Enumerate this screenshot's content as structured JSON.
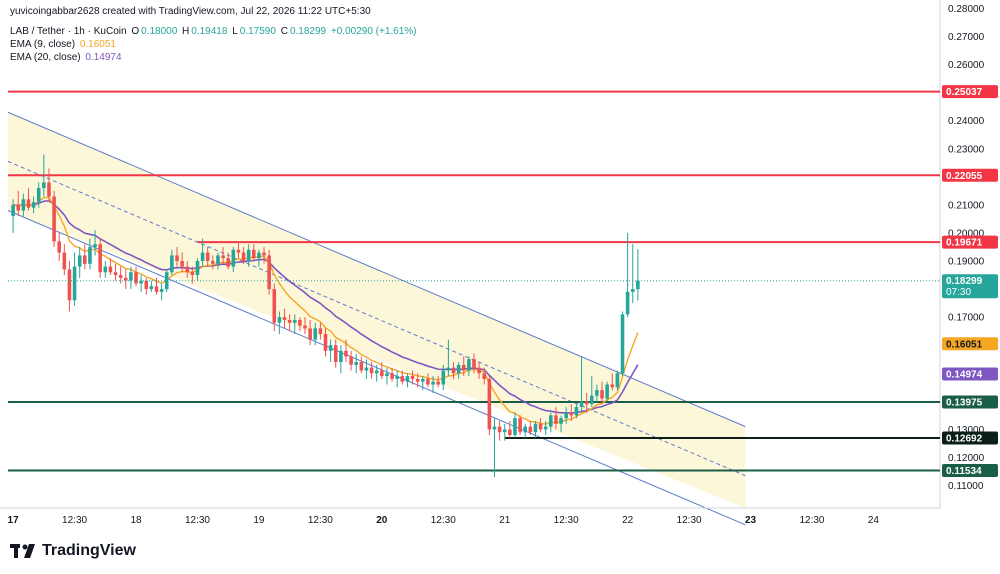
{
  "header": {
    "credit": "yuvicoingabbar2628 created with TradingView.com, Jul 22, 2026 11:22 UTC+5:30",
    "symbol": "LAB / Tether · 1h · KuCoin",
    "o_label": "O",
    "o_value": "0.18000",
    "h_label": "H",
    "h_value": "0.19418",
    "l_label": "L",
    "l_value": "0.17590",
    "c_label": "C",
    "c_value": "0.18299",
    "change": "+0.00290 (+1.61%)",
    "ema9_label": "EMA (9, close)",
    "ema9_value": "0.16051",
    "ema20_label": "EMA (20, close)",
    "ema20_value": "0.14974"
  },
  "colors": {
    "up": "#26a69a",
    "down": "#ef5350",
    "ema9": "#f5a623",
    "ema20": "#7e57c2",
    "resistance": "#f23645",
    "support": "#1b5e46",
    "channel": "#5b7dc8",
    "channel_fill": "#fdf7d9"
  },
  "branding": {
    "name": "TradingView",
    "icon": "tradingview-logo-icon"
  },
  "chart_data": {
    "type": "candlestick",
    "x_tick_labels": [
      "17",
      "12:30",
      "18",
      "12:30",
      "19",
      "12:30",
      "20",
      "12:30",
      "21",
      "12:30",
      "22",
      "12:30",
      "23",
      "12:30",
      "24"
    ],
    "y_tick_labels": [
      "0.28000",
      "0.27000",
      "0.26000",
      "0.25000",
      "0.24000",
      "0.23000",
      "0.22000",
      "0.21000",
      "0.20000",
      "0.19000",
      "0.18000",
      "0.17000",
      "0.16000",
      "0.15000",
      "0.14000",
      "0.13000",
      "0.12000",
      "0.11000"
    ],
    "ylim": [
      0.102,
      0.283
    ],
    "x_range_hours": [
      -1,
      181
    ],
    "horizontal_levels": [
      {
        "value": 0.25037,
        "label": "0.25037",
        "kind": "resistance",
        "x_start_hour": -1
      },
      {
        "value": 0.22055,
        "label": "0.22055",
        "kind": "resistance",
        "x_start_hour": -1
      },
      {
        "value": 0.19671,
        "label": "0.19671",
        "kind": "resistance",
        "x_start_hour": 36
      },
      {
        "value": 0.13975,
        "label": "0.13975",
        "kind": "support",
        "x_start_hour": -1
      },
      {
        "value": 0.12692,
        "label": "0.12692",
        "kind": "support_dark",
        "x_start_hour": 96
      },
      {
        "value": 0.11534,
        "label": "0.11534",
        "kind": "support",
        "x_start_hour": -1
      }
    ],
    "price_label": {
      "value": 0.18299,
      "label": "0.18299",
      "countdown": "07:30"
    },
    "ema9_label": {
      "value": 0.16051,
      "label": "0.16051"
    },
    "ema20_label": {
      "value": 0.14974,
      "label": "0.14974"
    },
    "channel": {
      "upper": [
        [
          -1,
          0.243
        ],
        [
          143,
          0.131
        ]
      ],
      "middle": [
        [
          -1,
          0.2255
        ],
        [
          143,
          0.1135
        ]
      ],
      "lower": [
        [
          -1,
          0.208
        ],
        [
          143,
          0.096
        ]
      ],
      "fill_end_hour": 143
    },
    "candles_ohlc_hourly": [
      [
        0.206,
        0.212,
        0.2,
        0.21
      ],
      [
        0.21,
        0.215,
        0.206,
        0.208
      ],
      [
        0.208,
        0.214,
        0.206,
        0.212
      ],
      [
        0.212,
        0.216,
        0.208,
        0.209
      ],
      [
        0.209,
        0.213,
        0.207,
        0.211
      ],
      [
        0.211,
        0.218,
        0.209,
        0.216
      ],
      [
        0.216,
        0.228,
        0.213,
        0.218
      ],
      [
        0.218,
        0.223,
        0.211,
        0.213
      ],
      [
        0.213,
        0.215,
        0.195,
        0.197
      ],
      [
        0.197,
        0.2,
        0.19,
        0.193
      ],
      [
        0.193,
        0.196,
        0.185,
        0.187
      ],
      [
        0.187,
        0.19,
        0.172,
        0.176
      ],
      [
        0.176,
        0.193,
        0.174,
        0.188
      ],
      [
        0.188,
        0.195,
        0.184,
        0.192
      ],
      [
        0.192,
        0.196,
        0.187,
        0.189
      ],
      [
        0.189,
        0.198,
        0.187,
        0.195
      ],
      [
        0.195,
        0.201,
        0.192,
        0.196
      ],
      [
        0.196,
        0.198,
        0.184,
        0.186
      ],
      [
        0.186,
        0.19,
        0.184,
        0.188
      ],
      [
        0.188,
        0.191,
        0.185,
        0.186
      ],
      [
        0.186,
        0.189,
        0.183,
        0.185
      ],
      [
        0.185,
        0.188,
        0.182,
        0.184
      ],
      [
        0.184,
        0.187,
        0.18,
        0.183
      ],
      [
        0.183,
        0.188,
        0.18,
        0.186
      ],
      [
        0.186,
        0.188,
        0.181,
        0.182
      ],
      [
        0.182,
        0.185,
        0.179,
        0.183
      ],
      [
        0.183,
        0.184,
        0.178,
        0.18
      ],
      [
        0.18,
        0.183,
        0.179,
        0.181
      ],
      [
        0.181,
        0.184,
        0.178,
        0.179
      ],
      [
        0.179,
        0.182,
        0.176,
        0.18
      ],
      [
        0.18,
        0.187,
        0.179,
        0.186
      ],
      [
        0.186,
        0.194,
        0.185,
        0.192
      ],
      [
        0.192,
        0.195,
        0.188,
        0.19
      ],
      [
        0.19,
        0.193,
        0.186,
        0.188
      ],
      [
        0.188,
        0.19,
        0.184,
        0.186
      ],
      [
        0.186,
        0.188,
        0.182,
        0.185
      ],
      [
        0.185,
        0.191,
        0.183,
        0.19
      ],
      [
        0.19,
        0.198,
        0.188,
        0.193
      ],
      [
        0.193,
        0.195,
        0.188,
        0.19
      ],
      [
        0.19,
        0.192,
        0.187,
        0.189
      ],
      [
        0.189,
        0.193,
        0.187,
        0.192
      ],
      [
        0.192,
        0.195,
        0.189,
        0.191
      ],
      [
        0.191,
        0.193,
        0.187,
        0.188
      ],
      [
        0.188,
        0.195,
        0.186,
        0.194
      ],
      [
        0.194,
        0.197,
        0.191,
        0.193
      ],
      [
        0.193,
        0.195,
        0.189,
        0.19
      ],
      [
        0.19,
        0.196,
        0.188,
        0.194
      ],
      [
        0.194,
        0.196,
        0.19,
        0.191
      ],
      [
        0.191,
        0.194,
        0.188,
        0.193
      ],
      [
        0.193,
        0.195,
        0.189,
        0.192
      ],
      [
        0.192,
        0.194,
        0.178,
        0.18
      ],
      [
        0.18,
        0.182,
        0.165,
        0.168
      ],
      [
        0.168,
        0.172,
        0.164,
        0.17
      ],
      [
        0.17,
        0.173,
        0.166,
        0.169
      ],
      [
        0.169,
        0.171,
        0.165,
        0.168
      ],
      [
        0.168,
        0.171,
        0.164,
        0.169
      ],
      [
        0.169,
        0.17,
        0.165,
        0.167
      ],
      [
        0.167,
        0.17,
        0.164,
        0.166
      ],
      [
        0.166,
        0.169,
        0.16,
        0.162
      ],
      [
        0.162,
        0.168,
        0.16,
        0.166
      ],
      [
        0.166,
        0.168,
        0.162,
        0.164
      ],
      [
        0.164,
        0.166,
        0.156,
        0.158
      ],
      [
        0.158,
        0.162,
        0.154,
        0.16
      ],
      [
        0.16,
        0.162,
        0.152,
        0.154
      ],
      [
        0.154,
        0.16,
        0.15,
        0.158
      ],
      [
        0.158,
        0.162,
        0.154,
        0.156
      ],
      [
        0.156,
        0.158,
        0.151,
        0.153
      ],
      [
        0.153,
        0.157,
        0.15,
        0.154
      ],
      [
        0.154,
        0.156,
        0.15,
        0.151
      ],
      [
        0.151,
        0.155,
        0.148,
        0.152
      ],
      [
        0.152,
        0.154,
        0.148,
        0.15
      ],
      [
        0.15,
        0.153,
        0.147,
        0.151
      ],
      [
        0.151,
        0.154,
        0.148,
        0.149
      ],
      [
        0.149,
        0.152,
        0.146,
        0.15
      ],
      [
        0.15,
        0.152,
        0.147,
        0.148
      ],
      [
        0.148,
        0.151,
        0.145,
        0.149
      ],
      [
        0.149,
        0.151,
        0.146,
        0.147
      ],
      [
        0.147,
        0.15,
        0.145,
        0.149
      ],
      [
        0.149,
        0.151,
        0.146,
        0.148
      ],
      [
        0.148,
        0.15,
        0.145,
        0.147
      ],
      [
        0.147,
        0.149,
        0.144,
        0.148
      ],
      [
        0.148,
        0.15,
        0.145,
        0.146
      ],
      [
        0.146,
        0.149,
        0.143,
        0.147
      ],
      [
        0.147,
        0.149,
        0.145,
        0.146
      ],
      [
        0.146,
        0.153,
        0.144,
        0.151
      ],
      [
        0.151,
        0.162,
        0.149,
        0.152
      ],
      [
        0.152,
        0.154,
        0.148,
        0.15
      ],
      [
        0.15,
        0.154,
        0.148,
        0.153
      ],
      [
        0.153,
        0.156,
        0.149,
        0.151
      ],
      [
        0.151,
        0.156,
        0.149,
        0.155
      ],
      [
        0.155,
        0.157,
        0.15,
        0.152
      ],
      [
        0.152,
        0.154,
        0.148,
        0.15
      ],
      [
        0.15,
        0.152,
        0.146,
        0.148
      ],
      [
        0.148,
        0.149,
        0.128,
        0.13
      ],
      [
        0.13,
        0.134,
        0.113,
        0.131
      ],
      [
        0.131,
        0.133,
        0.126,
        0.129
      ],
      [
        0.129,
        0.132,
        0.126,
        0.13
      ],
      [
        0.13,
        0.133,
        0.127,
        0.128
      ],
      [
        0.128,
        0.136,
        0.127,
        0.134
      ],
      [
        0.134,
        0.135,
        0.128,
        0.129
      ],
      [
        0.129,
        0.132,
        0.127,
        0.131
      ],
      [
        0.131,
        0.133,
        0.128,
        0.129
      ],
      [
        0.129,
        0.133,
        0.127,
        0.132
      ],
      [
        0.132,
        0.134,
        0.129,
        0.13
      ],
      [
        0.13,
        0.133,
        0.128,
        0.131
      ],
      [
        0.131,
        0.136,
        0.129,
        0.135
      ],
      [
        0.135,
        0.138,
        0.13,
        0.132
      ],
      [
        0.132,
        0.135,
        0.129,
        0.134
      ],
      [
        0.134,
        0.138,
        0.132,
        0.136
      ],
      [
        0.136,
        0.139,
        0.133,
        0.135
      ],
      [
        0.135,
        0.139,
        0.134,
        0.138
      ],
      [
        0.138,
        0.156,
        0.136,
        0.14
      ],
      [
        0.14,
        0.143,
        0.136,
        0.139
      ],
      [
        0.139,
        0.149,
        0.138,
        0.142
      ],
      [
        0.142,
        0.146,
        0.14,
        0.144
      ],
      [
        0.144,
        0.147,
        0.139,
        0.141
      ],
      [
        0.141,
        0.147,
        0.14,
        0.146
      ],
      [
        0.146,
        0.15,
        0.144,
        0.145
      ],
      [
        0.145,
        0.151,
        0.144,
        0.15
      ],
      [
        0.15,
        0.172,
        0.149,
        0.171
      ],
      [
        0.171,
        0.2,
        0.17,
        0.179
      ],
      [
        0.179,
        0.196,
        0.175,
        0.18
      ],
      [
        0.18,
        0.1942,
        0.1759,
        0.183
      ]
    ]
  }
}
